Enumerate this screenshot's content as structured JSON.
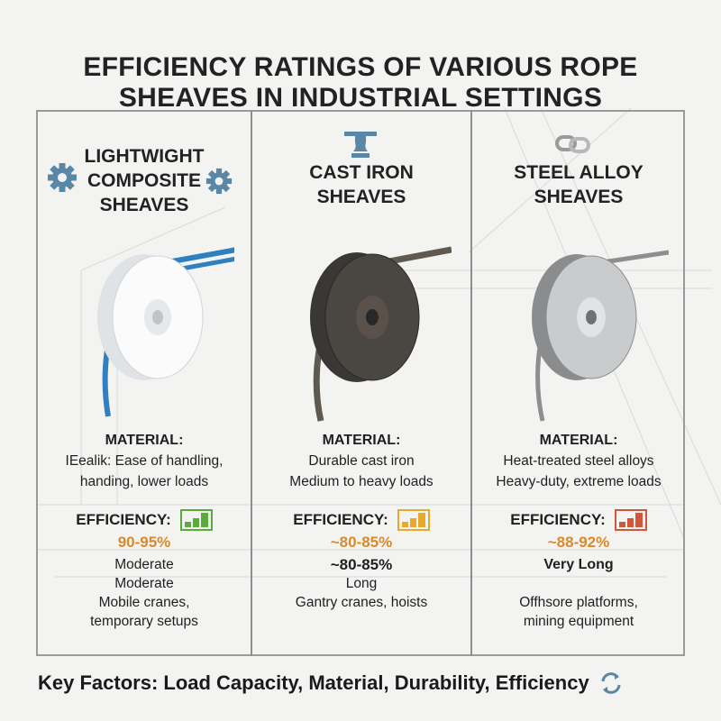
{
  "title": {
    "line1": "EFFICIENCY RATINGS OF VARIOUS ROPE",
    "line2": "SHEAVES IN INDUSTRIAL SETTINGS"
  },
  "columns": [
    {
      "heading": [
        "LIGHTWIGHT",
        "COMPOSITE",
        "SHEAVES"
      ],
      "icon": "gear-icon",
      "material_label": "MATERIAL:",
      "material": [
        "IEealik: Ease of handling,",
        "handing, lower loads"
      ],
      "efficiency_label": "EFFICIENCY:",
      "efficiency_icon_color": "#5aaa3c",
      "efficiency": "90-95%",
      "details": [
        "Moderate",
        "Moderate",
        "Mobile cranes,",
        "temporary setups"
      ]
    },
    {
      "heading": [
        "CAST IRON",
        "SHEAVES"
      ],
      "icon": "anvil-icon",
      "material_label": "MATERIAL:",
      "material": [
        "Durable cast iron",
        "Medium to heavy loads"
      ],
      "efficiency_label": "EFFICIENCY:",
      "efficiency_icon_color": "#e8a82a",
      "efficiency": "~80-85%",
      "details": [
        "~80-85%",
        "Long",
        "Gantry cranes, hoists"
      ]
    },
    {
      "heading": [
        "STEEL ALLOY",
        "SHEAVES"
      ],
      "icon": "chain-link-icon",
      "material_label": "MATERIAL:",
      "material": [
        "Heat-treated steel alloys",
        "Heavy-duty, extreme loads"
      ],
      "efficiency_label": "EFFICIENCY:",
      "efficiency_icon_color": "#d0573a",
      "efficiency": "~88-92%",
      "details": [
        "Very Long",
        "",
        "Offhsore platforms,",
        "mining equipment"
      ]
    }
  ],
  "footer": {
    "text": "Key Factors: Load Capacity, Material, Durability, Efficiency",
    "icon": "refresh-cycle-icon"
  },
  "colors": {
    "accent_blue": "#5b87a6",
    "percent_orange": "#d98a2a"
  }
}
